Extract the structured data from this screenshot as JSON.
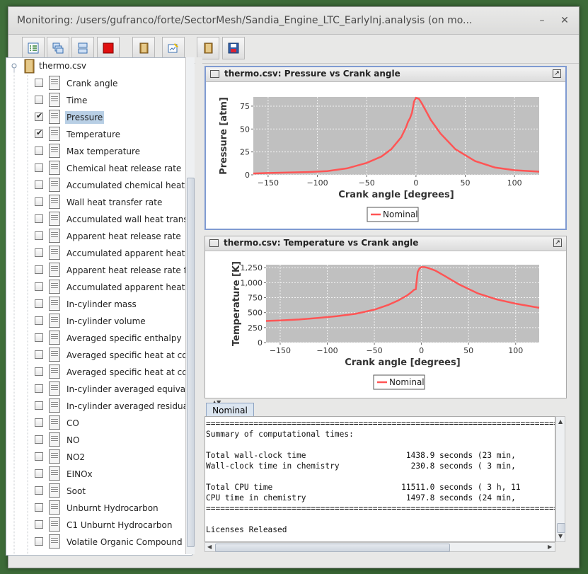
{
  "window": {
    "title": "Monitoring: /users/gufranco/forte/SectorMesh/Sandia_Engine_LTC_EarlyInj.analysis (on mo..."
  },
  "toolbar": {
    "icons": [
      "checklist-icon",
      "cascade-windows-icon",
      "tile-windows-icon",
      "stop-icon",
      "open-book-icon",
      "edit-chart-icon",
      "open-book-icon",
      "save-icon"
    ]
  },
  "tree": {
    "root_label": "thermo.csv",
    "items": [
      {
        "label": "Crank angle",
        "checked": false
      },
      {
        "label": "Time",
        "checked": false
      },
      {
        "label": "Pressure",
        "checked": true,
        "selected": true
      },
      {
        "label": "Temperature",
        "checked": true
      },
      {
        "label": "Max temperature",
        "checked": false
      },
      {
        "label": "Chemical heat release rate",
        "checked": false
      },
      {
        "label": "Accumulated chemical heat r",
        "checked": false
      },
      {
        "label": "Wall heat transfer rate",
        "checked": false
      },
      {
        "label": "Accumulated wall heat transf",
        "checked": false
      },
      {
        "label": "Apparent heat release rate",
        "checked": false
      },
      {
        "label": "Accumulated apparent heat r",
        "checked": false
      },
      {
        "label": "Apparent heat release rate fr",
        "checked": false
      },
      {
        "label": "Accumulated apparent heat r",
        "checked": false
      },
      {
        "label": "In-cylinder mass",
        "checked": false
      },
      {
        "label": "In-cylinder volume",
        "checked": false
      },
      {
        "label": "Averaged specific enthalpy",
        "checked": false
      },
      {
        "label": "Averaged specific heat at cor",
        "checked": false
      },
      {
        "label": "Averaged specific heat at cor",
        "checked": false
      },
      {
        "label": "In-cylinder averaged equival",
        "checked": false
      },
      {
        "label": "In-cylinder averaged residua",
        "checked": false
      },
      {
        "label": "CO",
        "checked": false
      },
      {
        "label": "NO",
        "checked": false
      },
      {
        "label": "NO2",
        "checked": false
      },
      {
        "label": "EINOx",
        "checked": false
      },
      {
        "label": "Soot",
        "checked": false
      },
      {
        "label": "Unburnt Hydrocarbon",
        "checked": false
      },
      {
        "label": "C1 Unburnt Hydrocarbon",
        "checked": false
      },
      {
        "label": "Volatile Organic Compound",
        "checked": false
      }
    ]
  },
  "chart_data": [
    {
      "type": "line",
      "panel_title": "thermo.csv: Pressure  vs Crank angle",
      "xlabel": "Crank angle  [degrees]",
      "ylabel": "Pressure  [atm]",
      "xlim": [
        -165,
        125
      ],
      "ylim": [
        0,
        85
      ],
      "xticks": [
        -150,
        -100,
        -50,
        0,
        50,
        100
      ],
      "yticks": [
        0,
        25,
        50,
        75
      ],
      "xtick_labels": [
        "−150",
        "−100",
        "−50",
        "0",
        "50",
        "100"
      ],
      "ytick_labels": [
        "0",
        "25",
        "50",
        "75"
      ],
      "grid": true,
      "legend": "bottom",
      "series": [
        {
          "name": "Nominal",
          "color": "#ff5555",
          "x": [
            -165,
            -150,
            -130,
            -110,
            -90,
            -70,
            -50,
            -35,
            -25,
            -15,
            -10,
            -8,
            -6,
            -4,
            -2,
            0,
            3,
            6,
            10,
            15,
            25,
            40,
            60,
            80,
            100,
            125
          ],
          "y": [
            1.5,
            2,
            2.5,
            3,
            4,
            7,
            13,
            20,
            28,
            41,
            52,
            58,
            62,
            68,
            80,
            84,
            83,
            78,
            70,
            60,
            45,
            28,
            15,
            8,
            5,
            3.5
          ]
        }
      ]
    },
    {
      "type": "line",
      "panel_title": "thermo.csv: Temperature  vs Crank angle",
      "xlabel": "Crank angle  [degrees]",
      "ylabel": "Temperature  [K]",
      "xlim": [
        -165,
        125
      ],
      "ylim": [
        0,
        1300
      ],
      "xticks": [
        -150,
        -100,
        -50,
        0,
        50,
        100
      ],
      "yticks": [
        0,
        250,
        500,
        750,
        1000,
        1250
      ],
      "xtick_labels": [
        "−150",
        "−100",
        "−50",
        "0",
        "50",
        "100"
      ],
      "ytick_labels": [
        "0",
        "250",
        "500",
        "750",
        "1,000",
        "1,250"
      ],
      "grid": true,
      "legend": "bottom",
      "series": [
        {
          "name": "Nominal",
          "color": "#ff5555",
          "x": [
            -165,
            -150,
            -130,
            -110,
            -90,
            -70,
            -50,
            -35,
            -25,
            -15,
            -10,
            -8,
            -6,
            -4,
            -2,
            0,
            3,
            6,
            10,
            15,
            25,
            40,
            60,
            80,
            100,
            125
          ],
          "y": [
            360,
            370,
            385,
            410,
            440,
            480,
            550,
            630,
            700,
            790,
            850,
            880,
            890,
            1180,
            1240,
            1260,
            1260,
            1250,
            1230,
            1200,
            1110,
            970,
            820,
            720,
            650,
            580
          ]
        }
      ]
    }
  ],
  "bottom": {
    "tab_label": "Nominal",
    "console_lines": [
      "==========================================================================",
      "Summary of computational times:",
      "",
      "Total wall-clock time                     1438.9 seconds (23 min,",
      "Wall-clock time in chemistry               230.8 seconds ( 3 min,",
      "",
      "Total CPU time                           11511.0 seconds ( 3 h, 11",
      "CPU time in chemistry                     1497.8 seconds (24 min,",
      "==========================================================================",
      "",
      "Licenses Released"
    ]
  }
}
